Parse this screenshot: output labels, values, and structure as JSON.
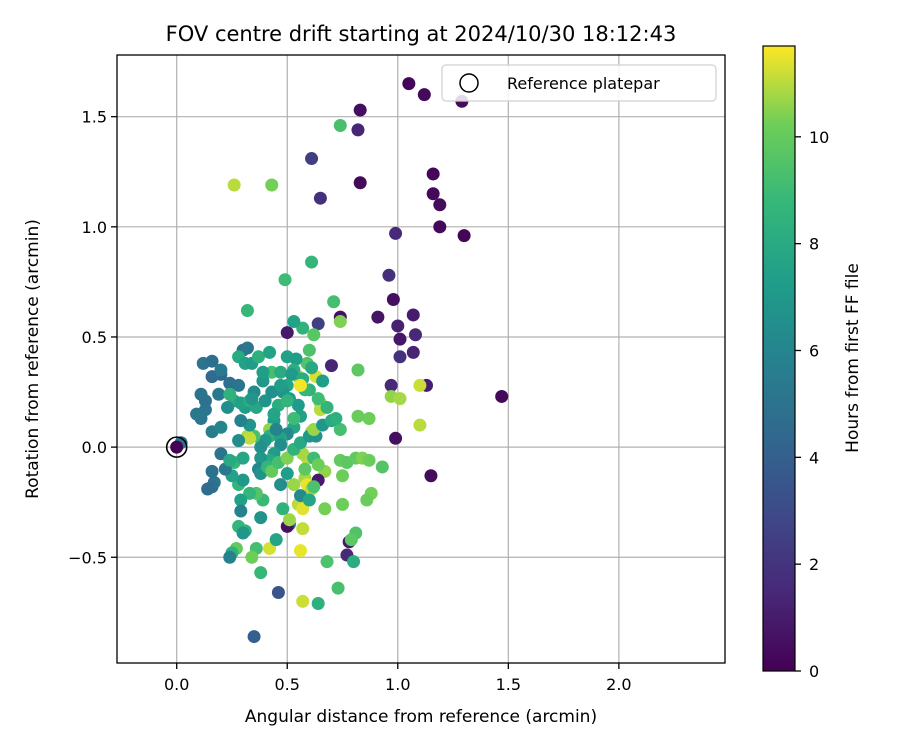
{
  "chart_data": {
    "type": "scatter",
    "title": "FOV centre drift starting at 2024/10/30 18:12:43",
    "xlabel": "Angular distance from reference (arcmin)",
    "ylabel": "Rotation from reference (arcmin)",
    "xlim": [
      -0.27,
      2.48
    ],
    "ylim": [
      -0.98,
      1.78
    ],
    "xticks": [
      0.0,
      0.5,
      1.0,
      1.5,
      2.0
    ],
    "xtick_labels": [
      "0.0",
      "0.5",
      "1.0",
      "1.5",
      "2.0"
    ],
    "yticks": [
      -0.5,
      0.0,
      0.5,
      1.0,
      1.5
    ],
    "ytick_labels": [
      "−0.5",
      "0.0",
      "0.5",
      "1.0",
      "1.5"
    ],
    "grid": true,
    "colormap": "viridis",
    "colorbar": {
      "label": "Hours from first FF file",
      "range": [
        0,
        11.7
      ],
      "ticks": [
        0,
        2,
        4,
        6,
        8,
        10
      ],
      "tick_labels": [
        "0",
        "2",
        "4",
        "6",
        "8",
        "10"
      ]
    },
    "legend": {
      "placement": "top-right",
      "entries": [
        {
          "label": "Reference platepar",
          "marker": "open-circle"
        }
      ]
    },
    "reference_point": {
      "x": 0.0,
      "y": 0.0
    },
    "points": [
      [
        1.05,
        1.65,
        0.2
      ],
      [
        1.12,
        1.6,
        0.3
      ],
      [
        0.83,
        1.53,
        0.5
      ],
      [
        0.82,
        1.44,
        1.4
      ],
      [
        1.29,
        1.57,
        0.4
      ],
      [
        0.61,
        1.31,
        2.5
      ],
      [
        1.16,
        1.24,
        0.2
      ],
      [
        1.16,
        1.15,
        0.3
      ],
      [
        1.19,
        1.1,
        0.4
      ],
      [
        0.83,
        1.2,
        0.3
      ],
      [
        0.65,
        1.13,
        1.8
      ],
      [
        1.19,
        1.0,
        0.3
      ],
      [
        1.3,
        0.96,
        0.2
      ],
      [
        0.99,
        0.97,
        1.6
      ],
      [
        0.96,
        0.78,
        1.8
      ],
      [
        0.98,
        0.67,
        0.5
      ],
      [
        1.07,
        0.6,
        1.0
      ],
      [
        1.0,
        0.55,
        1.2
      ],
      [
        1.08,
        0.51,
        1.5
      ],
      [
        0.91,
        0.59,
        0.7
      ],
      [
        1.01,
        0.49,
        0.8
      ],
      [
        1.01,
        0.41,
        1.9
      ],
      [
        1.07,
        0.43,
        1.3
      ],
      [
        0.74,
        0.59,
        0.6
      ],
      [
        0.5,
        0.52,
        0.9
      ],
      [
        0.64,
        0.56,
        2.5
      ],
      [
        0.7,
        0.37,
        1.4
      ],
      [
        0.97,
        0.28,
        1.5
      ],
      [
        1.13,
        0.28,
        1.1
      ],
      [
        1.47,
        0.23,
        0.3
      ],
      [
        0.99,
        0.04,
        0.5
      ],
      [
        1.15,
        -0.13,
        0.4
      ],
      [
        0.78,
        -0.43,
        0.9
      ],
      [
        0.77,
        -0.49,
        1.5
      ],
      [
        0.46,
        -0.66,
        3.5
      ],
      [
        0.35,
        -0.86,
        4.0
      ],
      [
        0.74,
        1.46,
        9.3
      ],
      [
        0.26,
        1.19,
        11.0
      ],
      [
        0.43,
        1.19,
        10.3
      ],
      [
        0.61,
        0.84,
        8.7
      ],
      [
        0.49,
        0.76,
        9.0
      ],
      [
        0.71,
        0.66,
        9.2
      ],
      [
        0.32,
        0.62,
        8.8
      ],
      [
        0.57,
        0.54,
        8.5
      ],
      [
        0.62,
        0.51,
        9.7
      ],
      [
        0.6,
        0.44,
        9.4
      ],
      [
        0.74,
        0.57,
        10.4
      ],
      [
        0.53,
        0.57,
        7.6
      ],
      [
        0.59,
        0.38,
        9.6
      ],
      [
        0.6,
        0.26,
        8.4
      ],
      [
        0.82,
        0.35,
        9.8
      ],
      [
        0.55,
        0.32,
        10.7
      ],
      [
        0.63,
        0.32,
        11.3
      ],
      [
        0.65,
        0.2,
        10.5
      ],
      [
        0.65,
        0.17,
        11.0
      ],
      [
        0.82,
        0.14,
        10.1
      ],
      [
        0.87,
        0.13,
        10.2
      ],
      [
        0.97,
        0.23,
        10.6
      ],
      [
        1.01,
        0.22,
        10.8
      ],
      [
        1.1,
        0.28,
        11.2
      ],
      [
        1.1,
        0.1,
        11.0
      ],
      [
        0.74,
        0.08,
        9.2
      ],
      [
        0.61,
        0.07,
        10.8
      ],
      [
        0.74,
        -0.06,
        10.0
      ],
      [
        0.77,
        -0.07,
        9.8
      ],
      [
        0.81,
        -0.05,
        9.9
      ],
      [
        0.84,
        -0.05,
        10.4
      ],
      [
        0.87,
        -0.06,
        10.1
      ],
      [
        0.93,
        -0.09,
        9.6
      ],
      [
        0.75,
        -0.13,
        10.2
      ],
      [
        0.67,
        -0.11,
        10.6
      ],
      [
        0.59,
        -0.05,
        11.0
      ],
      [
        0.58,
        -0.14,
        10.8
      ],
      [
        0.59,
        -0.17,
        11.5
      ],
      [
        0.61,
        -0.19,
        10.9
      ],
      [
        0.53,
        -0.17,
        10.7
      ],
      [
        0.55,
        -0.26,
        11.0
      ],
      [
        0.67,
        -0.28,
        10.3
      ],
      [
        0.75,
        -0.26,
        10.2
      ],
      [
        0.88,
        -0.21,
        10.3
      ],
      [
        0.86,
        -0.24,
        10.1
      ],
      [
        0.81,
        -0.39,
        9.5
      ],
      [
        0.79,
        -0.42,
        9.8
      ],
      [
        0.57,
        -0.28,
        11.4
      ],
      [
        0.57,
        -0.37,
        11.1
      ],
      [
        0.56,
        -0.47,
        11.5
      ],
      [
        0.68,
        -0.52,
        9.4
      ],
      [
        0.73,
        -0.64,
        9.3
      ],
      [
        0.57,
        -0.7,
        11.2
      ],
      [
        0.64,
        -0.71,
        8.3
      ],
      [
        0.8,
        -0.52,
        8.2
      ],
      [
        0.42,
        -0.46,
        11.3
      ],
      [
        0.36,
        -0.46,
        9.2
      ],
      [
        0.34,
        -0.5,
        10.2
      ],
      [
        0.27,
        -0.46,
        9.9
      ],
      [
        0.28,
        -0.36,
        8.7
      ],
      [
        0.38,
        -0.57,
        8.8
      ],
      [
        0.25,
        -0.48,
        8.4
      ],
      [
        0.24,
        -0.5,
        5.8
      ],
      [
        0.31,
        -0.38,
        8.5
      ],
      [
        0.3,
        -0.39,
        6.9
      ],
      [
        0.38,
        -0.32,
        6.7
      ],
      [
        0.39,
        -0.24,
        8.9
      ],
      [
        0.36,
        -0.21,
        9.6
      ],
      [
        0.33,
        -0.21,
        8.7
      ],
      [
        0.29,
        -0.24,
        7.5
      ],
      [
        0.29,
        -0.29,
        5.9
      ],
      [
        0.28,
        -0.17,
        8.6
      ],
      [
        0.3,
        -0.15,
        7.0
      ],
      [
        0.25,
        -0.13,
        7.6
      ],
      [
        0.26,
        -0.07,
        8.8
      ],
      [
        0.3,
        -0.05,
        7.8
      ],
      [
        0.22,
        -0.1,
        5.3
      ],
      [
        0.17,
        -0.16,
        5.1
      ],
      [
        0.16,
        -0.18,
        4.8
      ],
      [
        0.14,
        -0.19,
        4.6
      ],
      [
        0.16,
        -0.11,
        4.9
      ],
      [
        0.2,
        -0.03,
        5.0
      ],
      [
        0.16,
        0.07,
        5.5
      ],
      [
        0.11,
        0.13,
        5.2
      ],
      [
        0.09,
        0.15,
        5.3
      ],
      [
        0.13,
        0.17,
        5.1
      ],
      [
        0.13,
        0.21,
        4.9
      ],
      [
        0.11,
        0.24,
        5.0
      ],
      [
        0.19,
        0.24,
        5.3
      ],
      [
        0.2,
        0.33,
        4.3
      ],
      [
        0.16,
        0.32,
        4.5
      ],
      [
        0.12,
        0.38,
        5.0
      ],
      [
        0.16,
        0.39,
        4.8
      ],
      [
        0.2,
        0.35,
        5.4
      ],
      [
        0.24,
        0.29,
        4.7
      ],
      [
        0.28,
        0.28,
        5.0
      ],
      [
        0.3,
        0.44,
        4.8
      ],
      [
        0.32,
        0.45,
        5.2
      ],
      [
        0.28,
        0.41,
        8.0
      ],
      [
        0.31,
        0.38,
        7.5
      ],
      [
        0.34,
        0.38,
        7.2
      ],
      [
        0.37,
        0.41,
        8.3
      ],
      [
        0.42,
        0.43,
        7.6
      ],
      [
        0.43,
        0.34,
        9.2
      ],
      [
        0.47,
        0.34,
        8.1
      ],
      [
        0.5,
        0.41,
        7.5
      ],
      [
        0.54,
        0.4,
        7.3
      ],
      [
        0.53,
        0.35,
        8.2
      ],
      [
        0.52,
        0.33,
        7.1
      ],
      [
        0.5,
        0.28,
        7.7
      ],
      [
        0.48,
        0.25,
        6.9
      ],
      [
        0.46,
        0.19,
        8.2
      ],
      [
        0.44,
        0.12,
        7.3
      ],
      [
        0.42,
        0.08,
        10.6
      ],
      [
        0.42,
        0.05,
        8.3
      ],
      [
        0.4,
        0.03,
        7.0
      ],
      [
        0.38,
        0.0,
        6.6
      ],
      [
        0.35,
        0.05,
        9.3
      ],
      [
        0.32,
        0.05,
        10.9
      ],
      [
        0.33,
        0.04,
        11.1
      ],
      [
        0.33,
        0.1,
        6.8
      ],
      [
        0.29,
        0.12,
        5.8
      ],
      [
        0.31,
        0.18,
        7.2
      ],
      [
        0.26,
        0.21,
        8.1
      ],
      [
        0.24,
        0.24,
        8.5
      ],
      [
        0.29,
        0.2,
        7.5
      ],
      [
        0.33,
        0.21,
        8.2
      ],
      [
        0.36,
        0.18,
        7.8
      ],
      [
        0.4,
        0.21,
        6.8
      ],
      [
        0.35,
        0.25,
        6.3
      ],
      [
        0.39,
        0.3,
        7.0
      ],
      [
        0.43,
        0.25,
        6.6
      ],
      [
        0.47,
        0.28,
        7.3
      ],
      [
        0.51,
        0.22,
        7.4
      ],
      [
        0.55,
        0.19,
        7.1
      ],
      [
        0.56,
        0.14,
        7.5
      ],
      [
        0.53,
        0.09,
        7.8
      ],
      [
        0.5,
        0.06,
        6.2
      ],
      [
        0.47,
        0.04,
        7.6
      ],
      [
        0.47,
        0.01,
        6.4
      ],
      [
        0.44,
        -0.03,
        7.2
      ],
      [
        0.42,
        -0.06,
        8.0
      ],
      [
        0.38,
        -0.05,
        6.9
      ],
      [
        0.37,
        -0.1,
        6.1
      ],
      [
        0.38,
        -0.12,
        6.7
      ],
      [
        0.41,
        -0.09,
        8.7
      ],
      [
        0.43,
        -0.11,
        10.0
      ],
      [
        0.46,
        -0.07,
        9.2
      ],
      [
        0.5,
        -0.05,
        10.4
      ],
      [
        0.5,
        -0.12,
        7.3
      ],
      [
        0.47,
        -0.17,
        6.5
      ],
      [
        0.48,
        -0.28,
        8.5
      ],
      [
        0.45,
        -0.42,
        7.7
      ],
      [
        0.51,
        -0.35,
        5.3
      ],
      [
        0.5,
        -0.36,
        0.6
      ],
      [
        0.51,
        -0.33,
        10.7
      ],
      [
        0.56,
        -0.22,
        6.3
      ],
      [
        0.58,
        -0.1,
        9.8
      ],
      [
        0.57,
        -0.03,
        10.8
      ],
      [
        0.53,
        -0.01,
        8.5
      ],
      [
        0.56,
        0.02,
        7.9
      ],
      [
        0.6,
        0.05,
        7.0
      ],
      [
        0.63,
        0.05,
        6.7
      ],
      [
        0.62,
        0.08,
        10.7
      ],
      [
        0.66,
        0.1,
        6.9
      ],
      [
        0.7,
        0.12,
        7.9
      ],
      [
        0.72,
        0.13,
        8.3
      ],
      [
        0.68,
        0.18,
        8.6
      ],
      [
        0.64,
        0.22,
        9.0
      ],
      [
        0.58,
        0.26,
        8.8
      ],
      [
        0.57,
        0.31,
        8.1
      ],
      [
        0.61,
        0.36,
        7.9
      ],
      [
        0.66,
        0.3,
        7.4
      ],
      [
        0.62,
        -0.05,
        9.0
      ],
      [
        0.64,
        -0.08,
        10.2
      ],
      [
        0.64,
        -0.15,
        0.9
      ],
      [
        0.62,
        -0.18,
        9.4
      ],
      [
        0.6,
        -0.24,
        7.7
      ],
      [
        0.56,
        0.28,
        11.6
      ],
      [
        0.24,
        -0.06,
        7.9
      ],
      [
        0.28,
        0.03,
        6.4
      ],
      [
        0.44,
        0.15,
        7.7
      ],
      [
        0.02,
        0.02,
        5.0
      ],
      [
        0.2,
        0.09,
        6.0
      ],
      [
        0.23,
        0.18,
        6.5
      ],
      [
        0.53,
        0.13,
        9.0
      ],
      [
        0.45,
        0.08,
        6.0
      ],
      [
        0.39,
        0.34,
        7.4
      ],
      [
        0.34,
        0.22,
        6.9
      ],
      [
        0.5,
        0.21,
        8.6
      ]
    ]
  }
}
